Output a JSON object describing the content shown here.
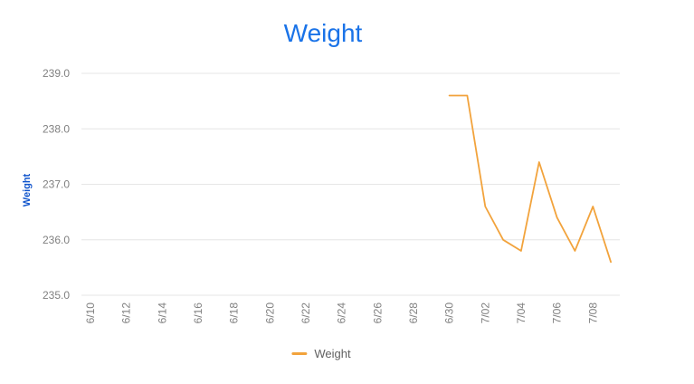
{
  "title": {
    "text": "Weight",
    "color": "#1a73e8"
  },
  "y_axis": {
    "title": "Weight",
    "title_color": "#1155cc",
    "tick_labels": [
      "239.0",
      "238.0",
      "237.0",
      "236.0",
      "235.0"
    ],
    "tick_color": "#808080"
  },
  "x_axis": {
    "tick_labels": [
      "6/10",
      "6/12",
      "6/14",
      "6/16",
      "6/18",
      "6/20",
      "6/22",
      "6/24",
      "6/26",
      "6/28",
      "6/30",
      "7/02",
      "7/04",
      "7/06",
      "7/08"
    ],
    "tick_color": "#808080"
  },
  "legend": {
    "label": "Weight",
    "marker_color": "#f2a33c",
    "text_color": "#616161"
  },
  "grid_color": "#e6e6e6",
  "chart_data": {
    "type": "line",
    "title": "Weight",
    "xlabel": "",
    "ylabel": "Weight",
    "x": [
      "6/30",
      "7/01",
      "7/02",
      "7/03",
      "7/04",
      "7/05",
      "7/06",
      "7/07",
      "7/08",
      "7/09"
    ],
    "series": [
      {
        "name": "Weight",
        "color": "#f2a33c",
        "values": [
          238.6,
          238.6,
          236.6,
          236.0,
          235.8,
          237.4,
          236.4,
          235.8,
          236.6,
          235.6
        ]
      }
    ],
    "ylim": [
      235.0,
      239.0
    ],
    "x_axis_range": [
      "6/10",
      "7/09"
    ],
    "x_tick_step_days": 2,
    "grid": "horizontal",
    "legend_position": "bottom"
  }
}
